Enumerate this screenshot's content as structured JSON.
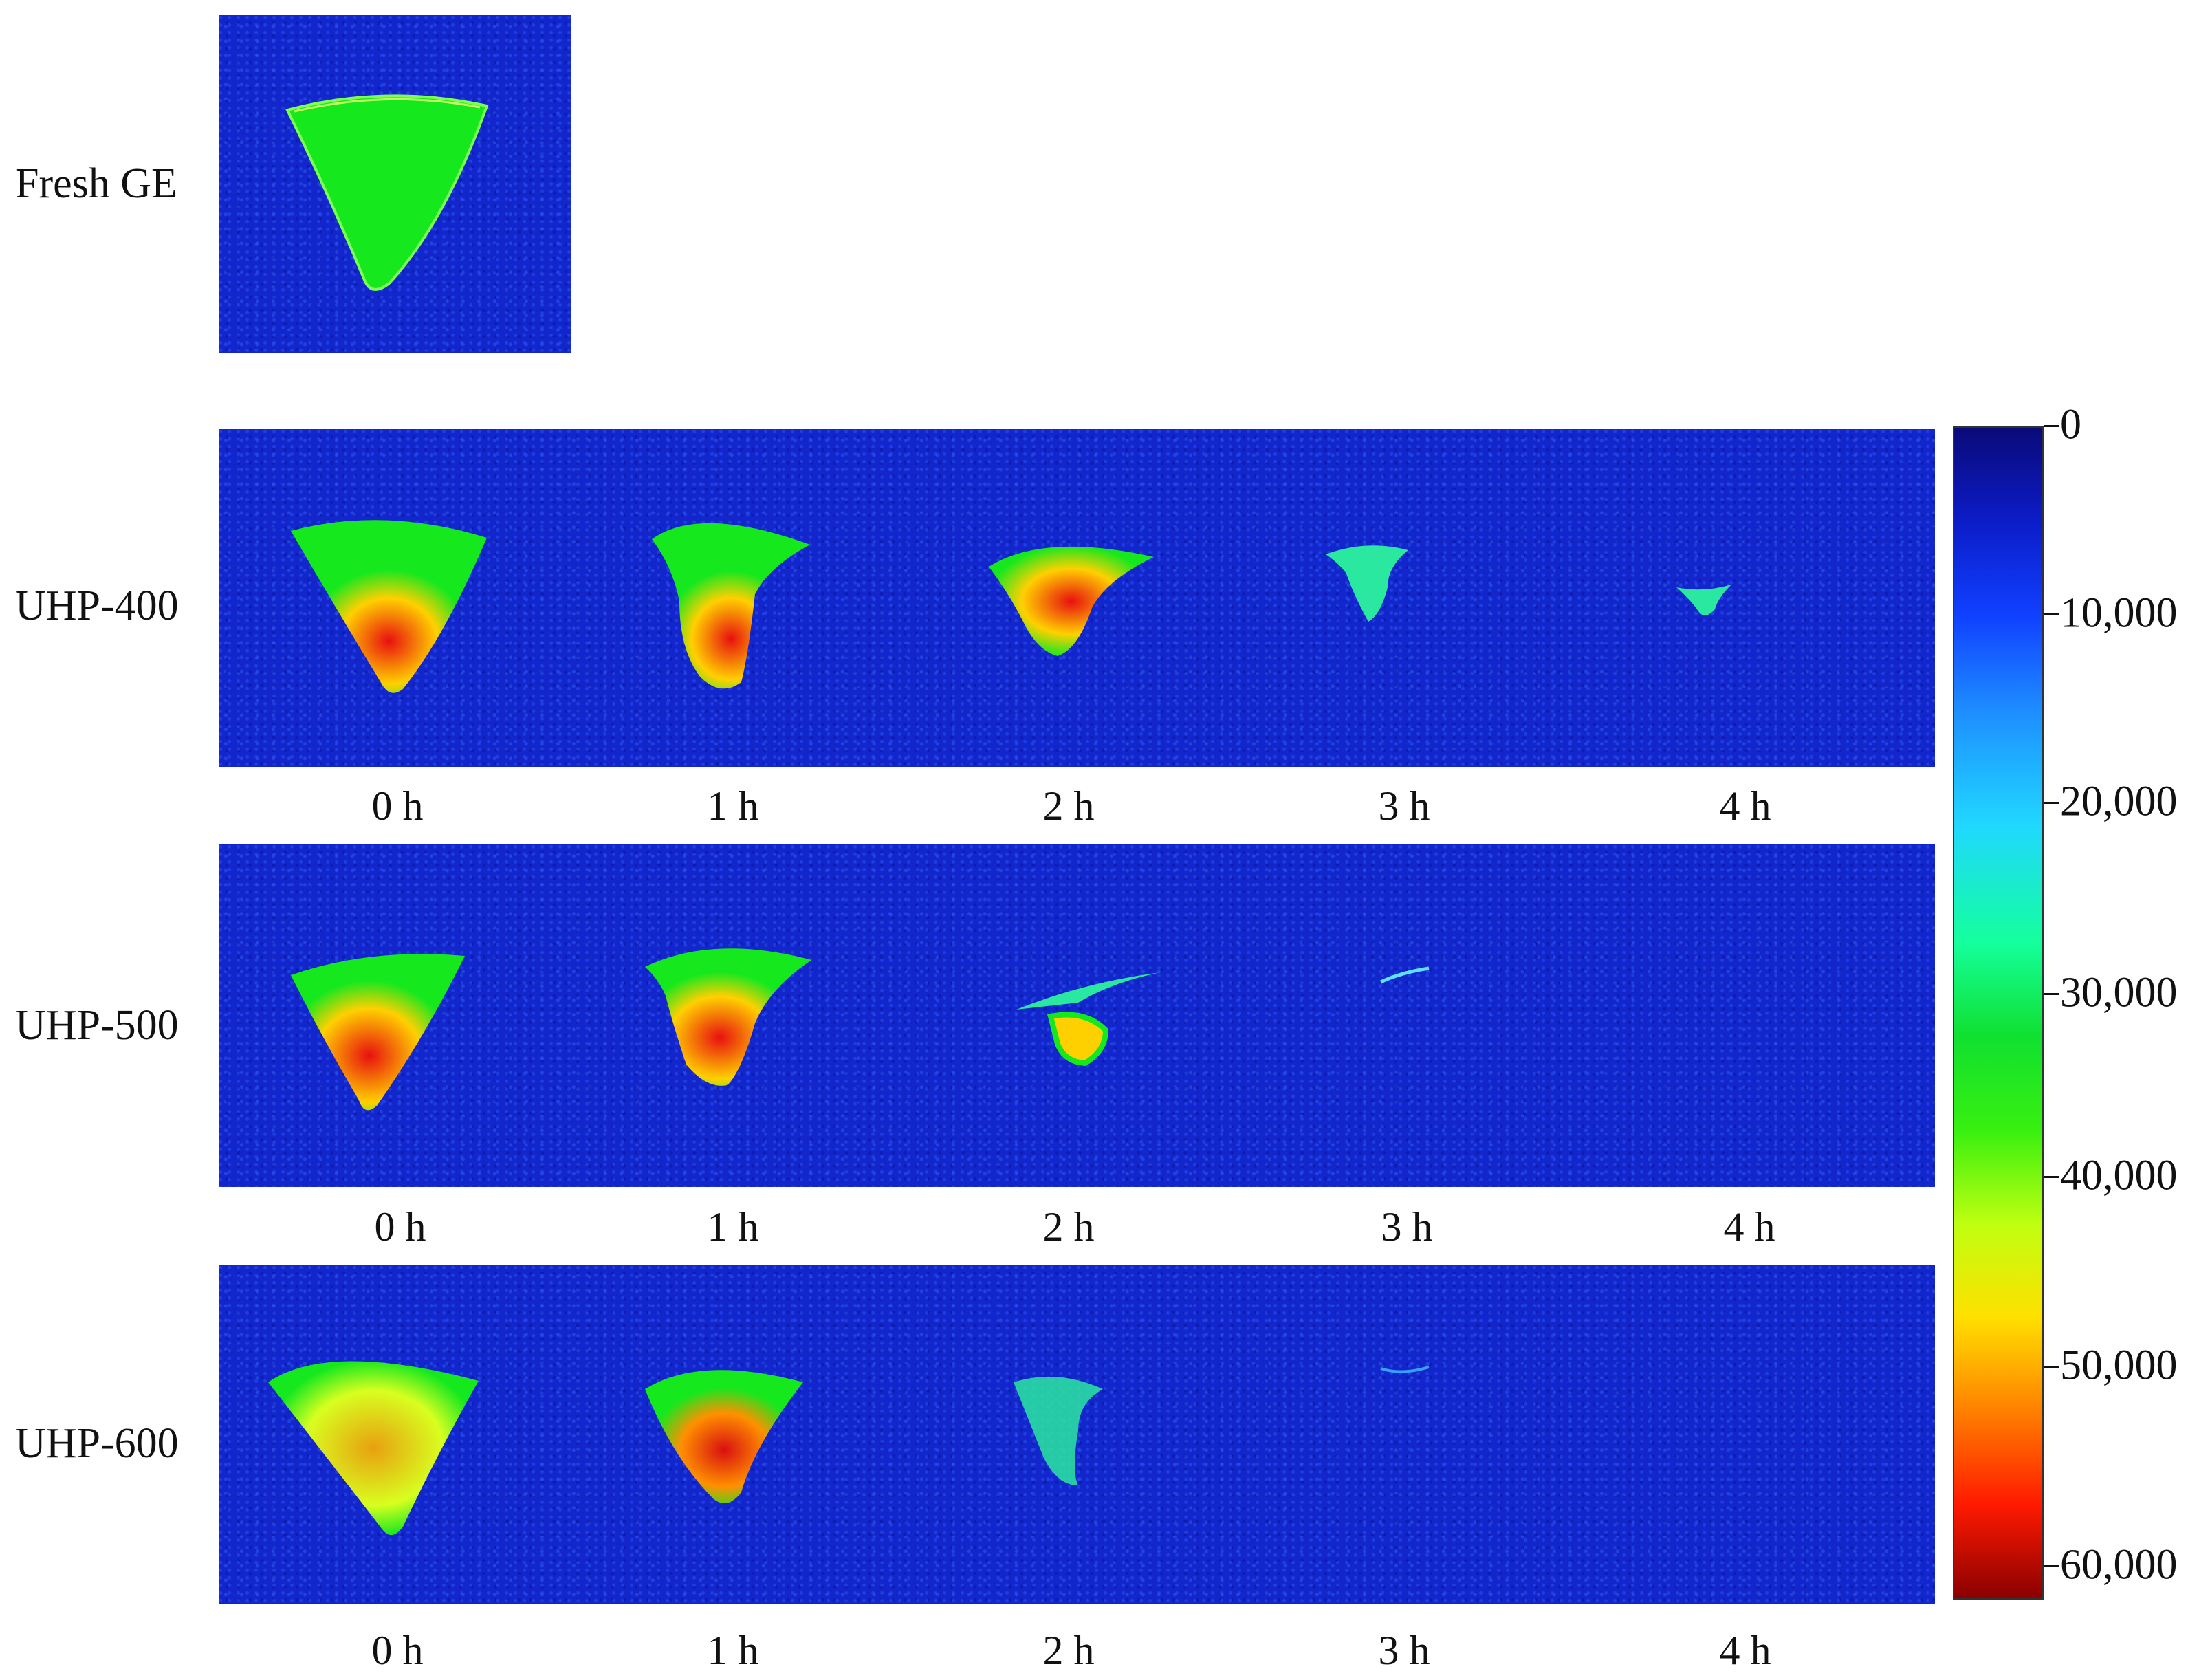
{
  "rows": [
    {
      "label": "Fresh GE",
      "images": 1,
      "times": []
    },
    {
      "label": "UHP-400",
      "images": 5,
      "times": [
        "0 h",
        "1 h",
        "2 h",
        "3 h",
        "4 h"
      ]
    },
    {
      "label": "UHP-500",
      "images": 5,
      "times": [
        "0 h",
        "1 h",
        "2 h",
        "3 h",
        "4 h"
      ]
    },
    {
      "label": "UHP-600",
      "images": 5,
      "times": [
        "0 h",
        "1 h",
        "2 h",
        "3 h",
        "4 h"
      ]
    }
  ],
  "colorbar": {
    "ticks": [
      "0",
      "10,000",
      "20,000",
      "30,000",
      "40,000",
      "50,000",
      "60,000"
    ],
    "scale": "blue-to-red (jet)"
  },
  "colors": {
    "background_blue": "#1326cc",
    "high_red": "#c81010",
    "mid_green": "#16e81e"
  }
}
